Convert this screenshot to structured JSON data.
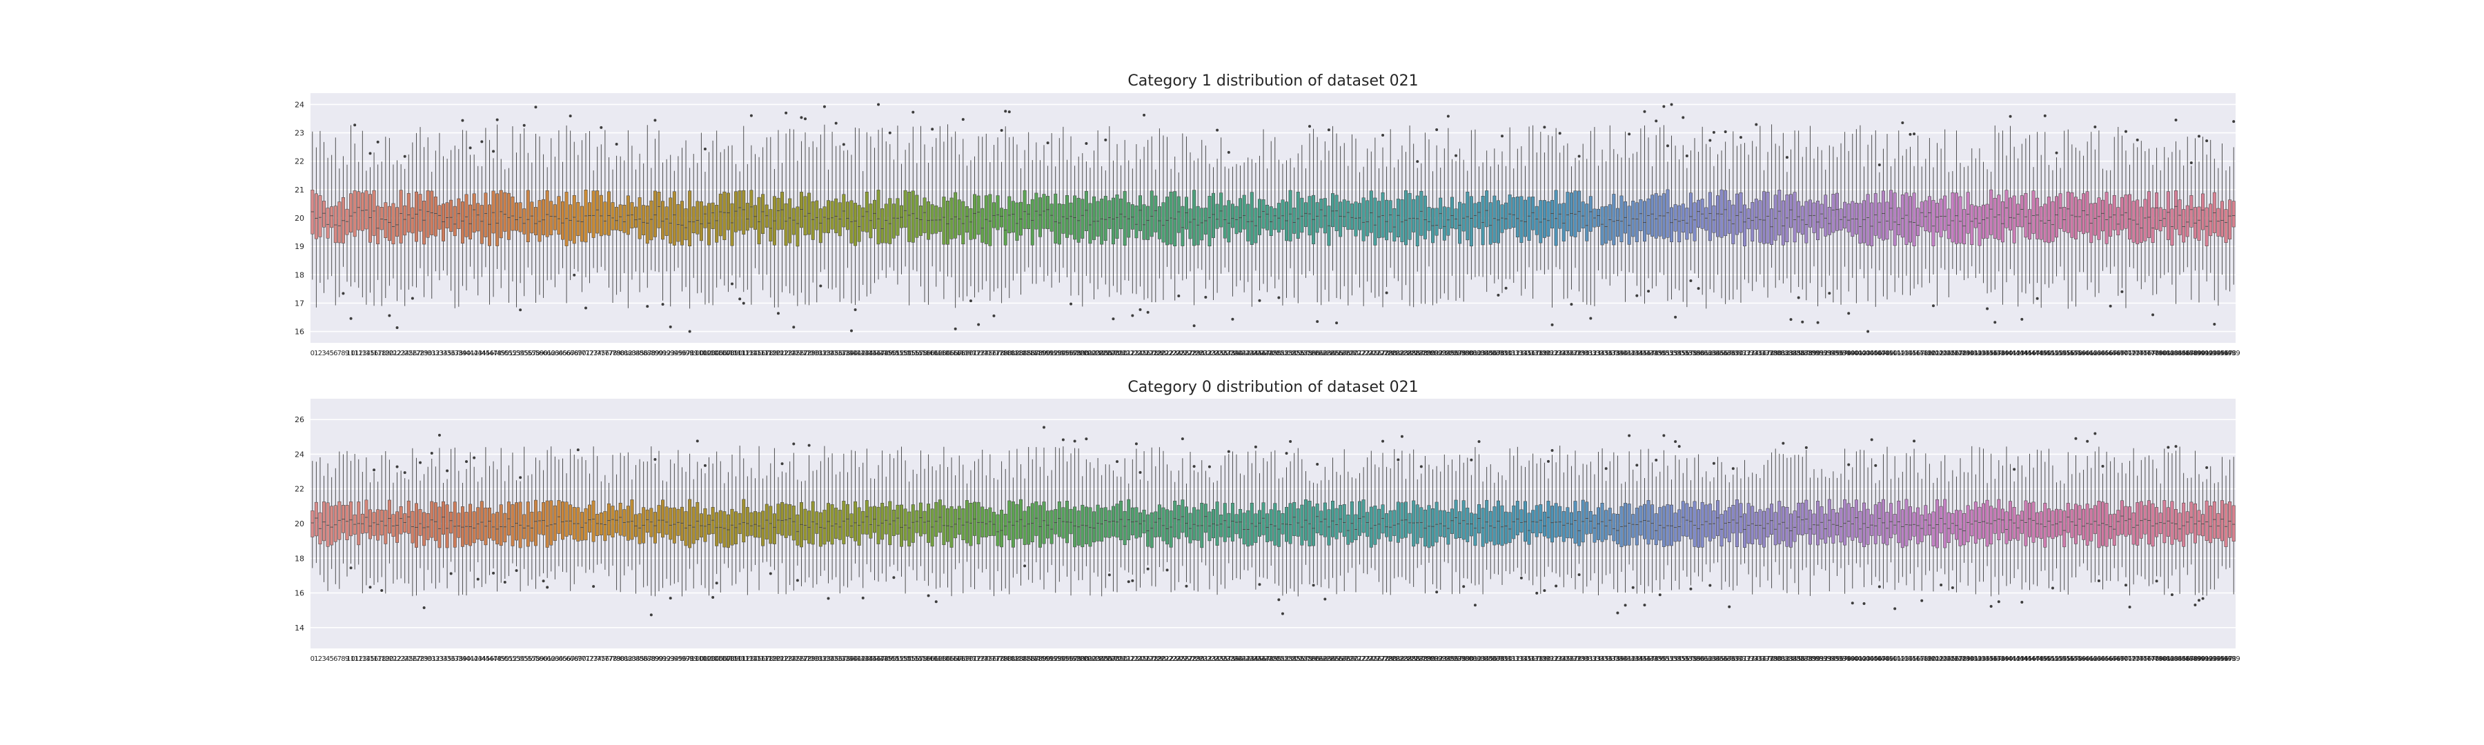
{
  "chart_data": [
    {
      "type": "box",
      "title": "Category 1 distribution of dataset 021",
      "xlabel": "",
      "ylabel": "",
      "ylim": [
        15.6,
        24.4
      ],
      "yticks": [
        16,
        17,
        18,
        19,
        20,
        21,
        22,
        23,
        24
      ],
      "x_ticks": {
        "start": 0,
        "count": 500,
        "step": 1
      },
      "n_categories": 500,
      "box_typical": {
        "q1": 19.4,
        "median": 20.0,
        "q3": 20.6,
        "whisker_low": 17.5,
        "whisker_high": 22.5
      },
      "box_band": {
        "q1_range": [
          19.0,
          19.7
        ],
        "q3_range": [
          20.3,
          21.0
        ],
        "whisker_low_range": [
          16.8,
          18.3
        ],
        "whisker_high_range": [
          21.6,
          23.3
        ]
      },
      "outlier_range": [
        16.0,
        24.0
      ],
      "palette": [
        "#d98b8b",
        "#cc7a5a",
        "#c98a35",
        "#a38f2f",
        "#8c9a33",
        "#5ea34d",
        "#4fa06e",
        "#48a08a",
        "#4a9ea0",
        "#4b93b5",
        "#7d8bc7",
        "#a586c6",
        "#c77fc1",
        "#d07aa3",
        "#d9828f"
      ],
      "grid": true,
      "background": "#eaeaf2"
    },
    {
      "type": "box",
      "title": "Category 0 distribution of dataset 021",
      "xlabel": "",
      "ylabel": "",
      "ylim": [
        12.8,
        27.2
      ],
      "yticks": [
        14,
        16,
        18,
        20,
        22,
        24,
        26
      ],
      "x_ticks": {
        "start": 0,
        "count": 500,
        "step": 1
      },
      "n_categories": 500,
      "box_typical": {
        "q1": 19.1,
        "median": 20.0,
        "q3": 20.9,
        "whisker_low": 16.8,
        "whisker_high": 23.2
      },
      "box_band": {
        "q1_range": [
          18.6,
          19.5
        ],
        "q3_range": [
          20.5,
          21.4
        ],
        "whisker_low_range": [
          15.8,
          17.8
        ],
        "whisker_high_range": [
          22.3,
          24.5
        ]
      },
      "outlier_range": [
        13.5,
        26.5
      ],
      "palette": [
        "#d98b8b",
        "#cc7a5a",
        "#c98a35",
        "#a38f2f",
        "#8c9a33",
        "#5ea34d",
        "#4fa06e",
        "#48a08a",
        "#4a9ea0",
        "#4b93b5",
        "#7d8bc7",
        "#a586c6",
        "#c77fc1",
        "#d07aa3",
        "#d9828f"
      ],
      "grid": true,
      "background": "#eaeaf2"
    }
  ]
}
